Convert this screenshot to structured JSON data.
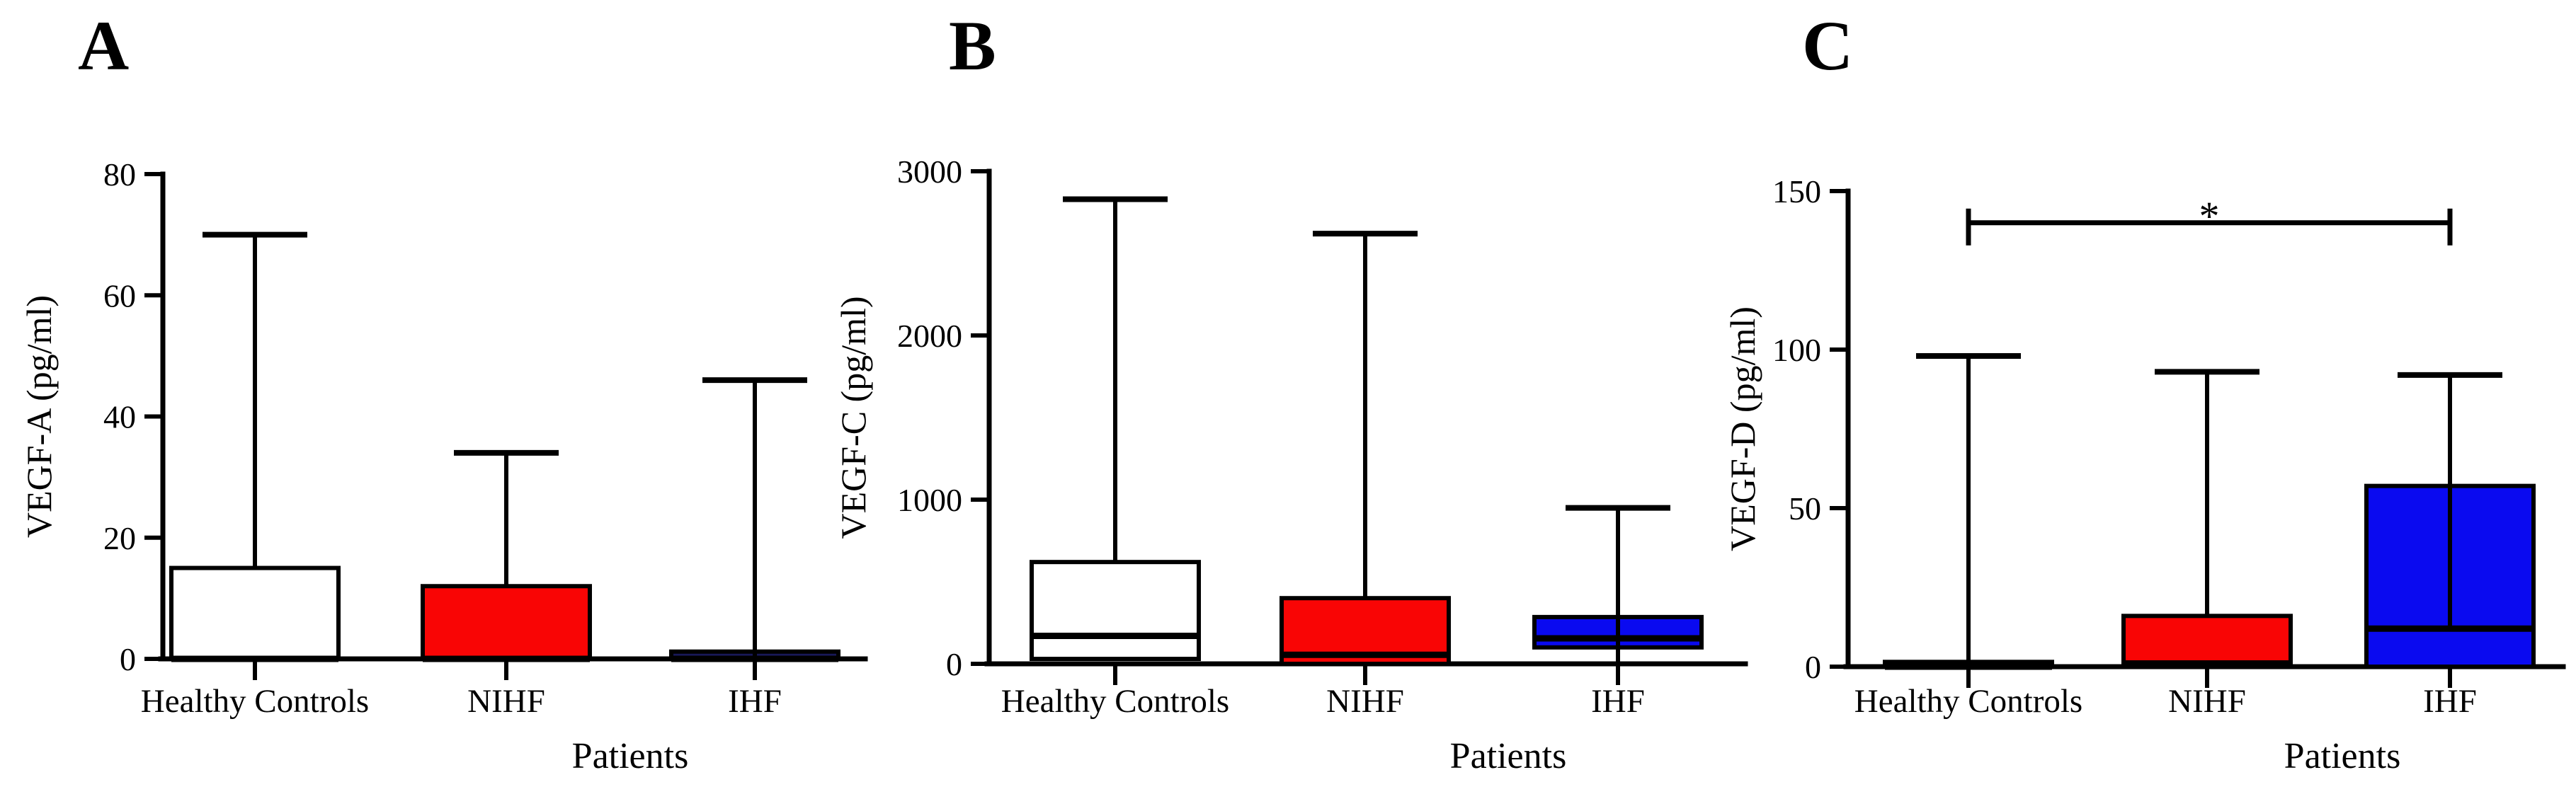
{
  "figure": {
    "background": "#ffffff",
    "panels": [
      "A",
      "B",
      "C"
    ]
  },
  "colors": {
    "healthy_controls_fill": "#ffffff",
    "nihf_fill": "#f90505",
    "ihf_fill_panel_a": "#181858",
    "ihf_fill": "#0a0af0",
    "line": "#000000"
  },
  "chart_data": [
    {
      "panel": "A",
      "type": "box",
      "ylabel": "VEGF-A (pg/ml)",
      "xlabel": "Patients",
      "ylim": [
        0,
        80
      ],
      "yticks": [
        0,
        20,
        40,
        60,
        80
      ],
      "grid": false,
      "categories": [
        "Healthy Controls",
        "NIHF",
        "IHF"
      ],
      "boxes": [
        {
          "category": "Healthy Controls",
          "q1": 0,
          "median": 0,
          "q3": 15,
          "whisker_high": 70,
          "whisker_low": null,
          "fill": "#ffffff"
        },
        {
          "category": "NIHF",
          "q1": 0,
          "median": 0,
          "q3": 12,
          "whisker_high": 34,
          "whisker_low": null,
          "fill": "#f90505"
        },
        {
          "category": "IHF",
          "q1": 0,
          "median": 0,
          "q3": 1.2,
          "whisker_high": 46,
          "whisker_low": null,
          "fill": "#181858"
        }
      ]
    },
    {
      "panel": "B",
      "type": "box",
      "ylabel": "VEGF-C (pg/ml)",
      "xlabel": "Patients",
      "ylim": [
        0,
        3000
      ],
      "yticks": [
        0,
        1000,
        2000,
        3000
      ],
      "grid": false,
      "categories": [
        "Healthy Controls",
        "NIHF",
        "IHF"
      ],
      "boxes": [
        {
          "category": "Healthy Controls",
          "q1": 30,
          "median": 170,
          "q3": 620,
          "whisker_high": 2830,
          "whisker_low": null,
          "fill": "#ffffff"
        },
        {
          "category": "NIHF",
          "q1": 0,
          "median": 55,
          "q3": 400,
          "whisker_high": 2620,
          "whisker_low": null,
          "fill": "#f90505"
        },
        {
          "category": "IHF",
          "q1": 100,
          "median": 155,
          "q3": 285,
          "whisker_high": 950,
          "whisker_low": 0,
          "fill": "#0a0af0"
        }
      ]
    },
    {
      "panel": "C",
      "type": "box",
      "ylabel": "VEGF-D (pg/ml)",
      "xlabel": "Patients",
      "ylim": [
        0,
        150
      ],
      "yticks": [
        0,
        50,
        100,
        150
      ],
      "grid": false,
      "categories": [
        "Healthy Controls",
        "NIHF",
        "IHF"
      ],
      "boxes": [
        {
          "category": "Healthy Controls",
          "q1": 0,
          "median": 0,
          "q3": 1.5,
          "whisker_high": 98,
          "whisker_low": null,
          "fill": "#ffffff"
        },
        {
          "category": "NIHF",
          "q1": 0,
          "median": 1,
          "q3": 16,
          "whisker_high": 93,
          "whisker_low": null,
          "fill": "#f90505"
        },
        {
          "category": "IHF",
          "q1": 0,
          "median": 12,
          "q3": 57,
          "whisker_high": 92,
          "whisker_low": null,
          "fill": "#0a0af0"
        }
      ],
      "significance": {
        "from": "Healthy Controls",
        "to": "IHF",
        "label": "*",
        "y": 140
      }
    }
  ]
}
